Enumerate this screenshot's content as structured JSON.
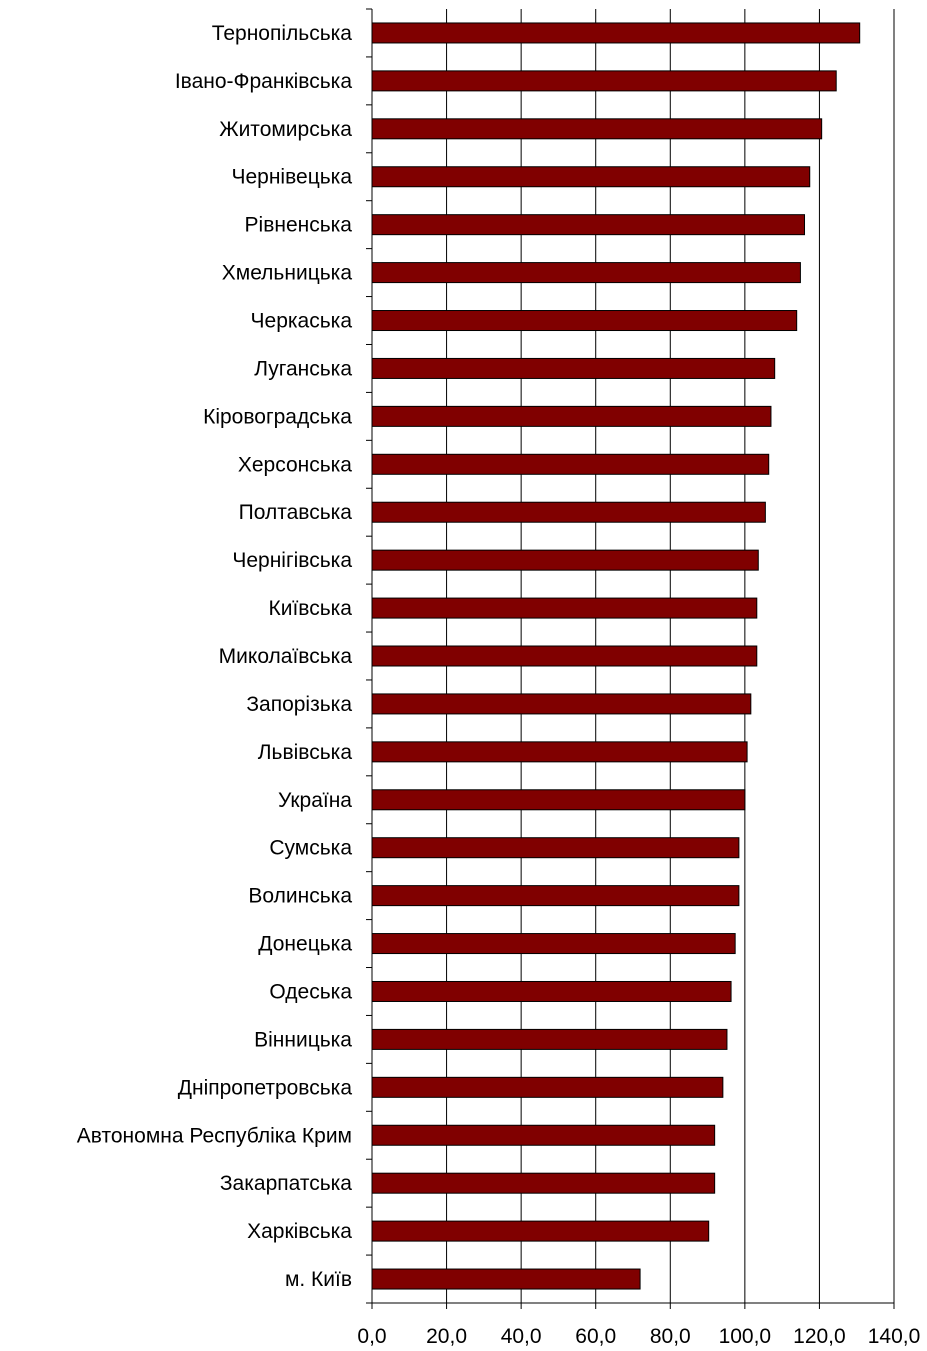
{
  "chart_data": {
    "type": "bar",
    "orientation": "horizontal",
    "categories": [
      "Тернопільська",
      "Івано-Франківська",
      "Житомирська",
      "Чернівецька",
      "Рівненська",
      "Хмельницька",
      "Черкаська",
      "Луганська",
      "Кіровоградська",
      "Херсонська",
      "Полтавська",
      "Чернігівська",
      "Київська",
      "Миколаївська",
      "Запорізька",
      "Львівська",
      "Україна",
      "Сумська",
      "Волинська",
      "Донецька",
      "Одеська",
      "Вінницька",
      "Дніпропетровська",
      "Автономна Республіка Крим",
      "Закарпатська",
      "Харківська",
      "м. Київ"
    ],
    "values": [
      130.8,
      124.5,
      120.6,
      117.4,
      116.0,
      114.9,
      113.9,
      108.0,
      107.0,
      106.4,
      105.5,
      103.6,
      103.2,
      103.2,
      101.6,
      100.6,
      100.0,
      98.4,
      98.4,
      97.4,
      96.3,
      95.2,
      94.1,
      91.9,
      91.9,
      90.3,
      71.9
    ],
    "xlim": [
      0,
      140
    ],
    "xticks": [
      "0,0",
      "20,0",
      "40,0",
      "60,0",
      "80,0",
      "100,0",
      "120,0",
      "140,0"
    ],
    "xtick_values": [
      0,
      20,
      40,
      60,
      80,
      100,
      120,
      140
    ],
    "grid": "vertical gridlines",
    "bar_color": "#800000",
    "bar_edge_color": "#000000",
    "title": "",
    "xlabel": "",
    "ylabel": ""
  }
}
